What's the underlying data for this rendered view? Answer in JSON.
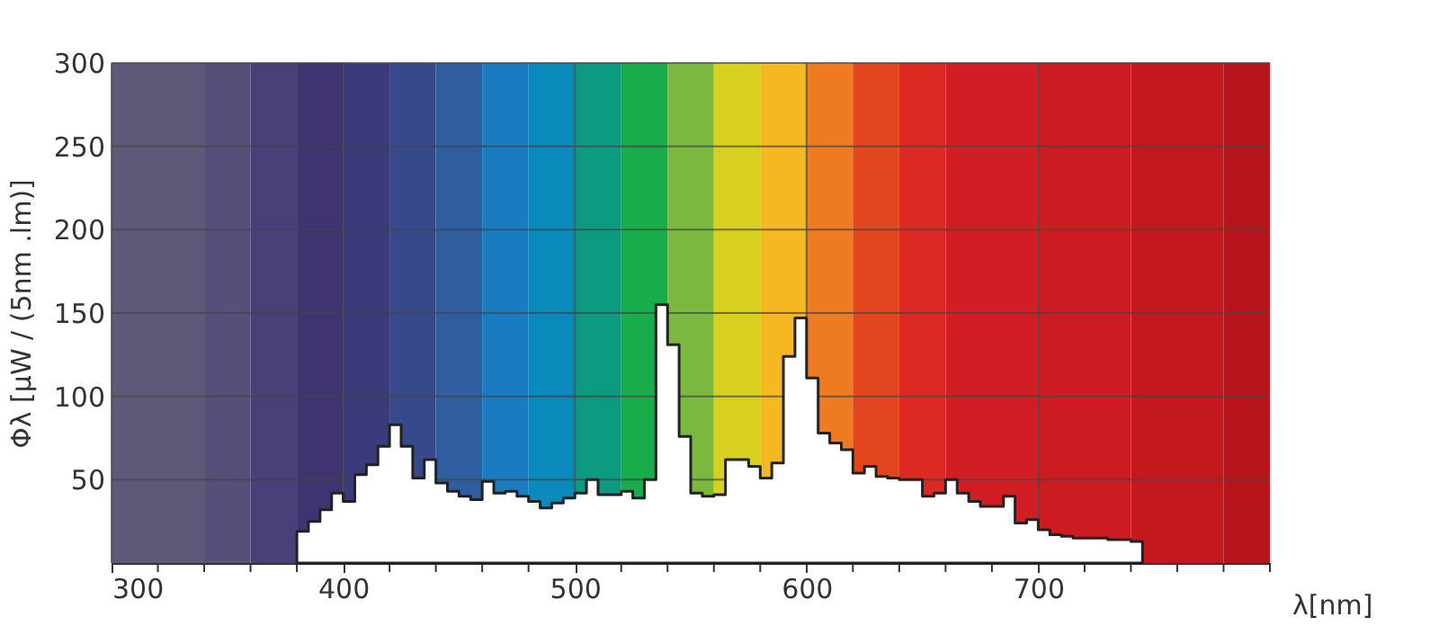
{
  "chart_data": {
    "type": "area",
    "xlabel": "λ[nm]",
    "ylabel": "Φλ [μW / (5nm .lm)]",
    "x": [
      380,
      385,
      390,
      395,
      400,
      405,
      410,
      415,
      420,
      425,
      430,
      435,
      440,
      445,
      450,
      455,
      460,
      465,
      470,
      475,
      480,
      485,
      490,
      495,
      500,
      505,
      510,
      515,
      520,
      525,
      530,
      535,
      540,
      545,
      550,
      555,
      560,
      565,
      570,
      575,
      580,
      585,
      590,
      595,
      600,
      605,
      610,
      615,
      620,
      625,
      630,
      635,
      640,
      645,
      650,
      655,
      660,
      665,
      670,
      675,
      680,
      685,
      690,
      695,
      700,
      705,
      710,
      715,
      720,
      725,
      730,
      735,
      740,
      745
    ],
    "values": [
      19,
      25,
      32,
      42,
      37,
      53,
      59,
      70,
      83,
      70,
      51,
      62,
      48,
      43,
      40,
      38,
      49,
      42,
      43,
      40,
      37,
      33,
      36,
      39,
      42,
      50,
      41,
      41,
      43,
      39,
      50,
      155,
      131,
      76,
      42,
      40,
      41,
      62,
      62,
      58,
      51,
      60,
      124,
      147,
      111,
      78,
      72,
      68,
      54,
      58,
      52,
      51,
      50,
      50,
      40,
      42,
      50,
      42,
      37,
      34,
      34,
      40,
      24,
      26,
      20,
      17,
      16,
      15,
      15,
      15,
      14,
      14,
      13,
      13
    ],
    "color": "#ffffff",
    "xlim": [
      300,
      800
    ],
    "xticks": [
      300,
      {
        "value": 320,
        "label": null
      },
      {
        "value": 340,
        "label": null
      },
      {
        "value": 360,
        "label": null
      },
      {
        "value": 380,
        "label": null
      },
      400,
      {
        "value": 420,
        "label": null
      },
      {
        "value": 440,
        "label": null
      },
      {
        "value": 460,
        "label": null
      },
      {
        "value": 480,
        "label": null
      },
      500,
      {
        "value": 520,
        "label": null
      },
      {
        "value": 540,
        "label": null
      },
      {
        "value": 560,
        "label": null
      },
      {
        "value": 580,
        "label": null
      },
      600,
      {
        "value": 620,
        "label": null
      },
      {
        "value": 640,
        "label": null
      },
      {
        "value": 660,
        "label": null
      },
      {
        "value": 680,
        "label": null
      },
      700,
      {
        "value": 720,
        "label": null
      },
      {
        "value": 740,
        "label": null
      },
      {
        "value": 760,
        "label": null
      },
      {
        "value": 780,
        "label": null
      },
      {
        "value": 800,
        "label": null
      }
    ],
    "ylim": [
      0,
      300
    ],
    "yticks": [
      50,
      100,
      150,
      200,
      250,
      300
    ],
    "grid": true,
    "bands": [
      {
        "axis": "x",
        "from": 300,
        "to": 340,
        "color": "#5c5a78"
      },
      {
        "axis": "x",
        "from": 340,
        "to": 360,
        "color": "#55507a"
      },
      {
        "axis": "x",
        "from": 360,
        "to": 380,
        "color": "#4a3f78"
      },
      {
        "axis": "x",
        "from": 380,
        "to": 400,
        "color": "#3f3370"
      },
      {
        "axis": "x",
        "from": 400,
        "to": 420,
        "color": "#3b3a7a"
      },
      {
        "axis": "x",
        "from": 420,
        "to": 440,
        "color": "#36498a"
      },
      {
        "axis": "x",
        "from": 440,
        "to": 460,
        "color": "#2e5ea0"
      },
      {
        "axis": "x",
        "from": 460,
        "to": 480,
        "color": "#1a7cc0"
      },
      {
        "axis": "x",
        "from": 480,
        "to": 500,
        "color": "#0a8aba"
      },
      {
        "axis": "x",
        "from": 500,
        "to": 520,
        "color": "#0c9a80"
      },
      {
        "axis": "x",
        "from": 520,
        "to": 540,
        "color": "#18ac4a"
      },
      {
        "axis": "x",
        "from": 540,
        "to": 560,
        "color": "#7ab840"
      },
      {
        "axis": "x",
        "from": 560,
        "to": 580,
        "color": "#d8d020"
      },
      {
        "axis": "x",
        "from": 580,
        "to": 600,
        "color": "#f6b820"
      },
      {
        "axis": "x",
        "from": 600,
        "to": 620,
        "color": "#ee7a22"
      },
      {
        "axis": "x",
        "from": 620,
        "to": 640,
        "color": "#e2461e"
      },
      {
        "axis": "x",
        "from": 640,
        "to": 660,
        "color": "#dc2a22"
      },
      {
        "axis": "x",
        "from": 660,
        "to": 700,
        "color": "#d01e24"
      },
      {
        "axis": "x",
        "from": 700,
        "to": 740,
        "color": "#cc1c22"
      },
      {
        "axis": "x",
        "from": 740,
        "to": 780,
        "color": "#c4181f"
      },
      {
        "axis": "x",
        "from": 780,
        "to": 800,
        "color": "#b8141c"
      }
    ]
  }
}
